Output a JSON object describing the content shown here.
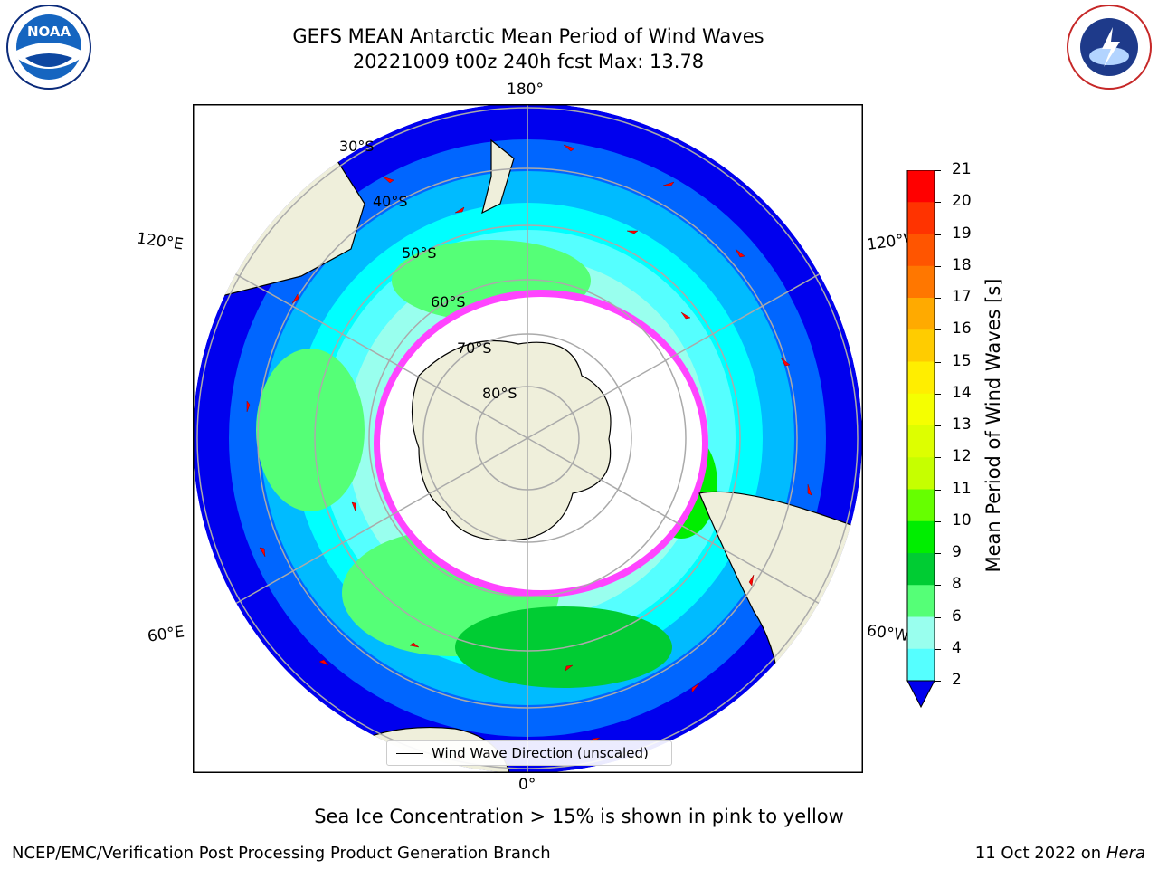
{
  "title": {
    "line1": "GEFS MEAN Antarctic Mean Period of Wind Waves",
    "line2": "20221009 t00z 240h fcst   Max: 13.78"
  },
  "map": {
    "lon_labels": {
      "top": "180°",
      "bottom": "0°",
      "left_upper": "120°E",
      "left_lower": "60°E",
      "right_upper": "120°W",
      "right_lower": "60°W"
    },
    "lat_labels": [
      "30°S",
      "40°S",
      "50°S",
      "60°S",
      "70°S",
      "80°S"
    ],
    "legend_label": "Wind Wave Direction (unscaled)"
  },
  "colorbar": {
    "label": "Mean Period of Wind Waves [s]",
    "ticks": [
      "21",
      "20",
      "19",
      "18",
      "17",
      "16",
      "15",
      "14",
      "13",
      "12",
      "11",
      "10",
      "9",
      "8",
      "6",
      "4",
      "2"
    ],
    "colors": [
      "#ff0000",
      "#ff3300",
      "#ff5500",
      "#ff7700",
      "#ffaa00",
      "#ffcc00",
      "#ffee00",
      "#f5ff00",
      "#ddff00",
      "#c6ff00",
      "#66ff00",
      "#00ee00",
      "#00cc33",
      "#55ff77",
      "#99ffee",
      "#55ffff",
      "#00ffff",
      "#00bbff",
      "#0066ff",
      "#0000ee"
    ]
  },
  "logos": {
    "left": "NOAA",
    "right": "NATIONAL WEATHER SERVICE"
  },
  "note": "Sea Ice Concentration > 15% is shown in pink to yellow",
  "footer": {
    "left": "NCEP/EMC/Verification Post Processing Product Generation Branch",
    "right_date": "11 Oct 2022 on ",
    "right_system": "Hera"
  }
}
